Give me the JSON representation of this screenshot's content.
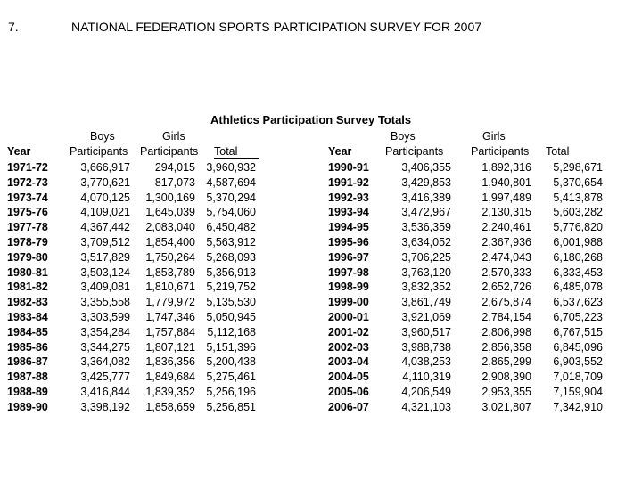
{
  "header": {
    "number": "7.",
    "title": "NATIONAL FEDERATION SPORTS PARTICIPATION SURVEY FOR 2007"
  },
  "subtitle": "Athletics Participation Survey Totals",
  "column_headers": {
    "year": "Year",
    "boys_top": "Boys",
    "girls_top": "Girls",
    "participants": "Participants",
    "total": "Total"
  },
  "left_table": {
    "years": [
      "1971-72",
      "1972-73",
      "1973-74",
      "1975-76",
      "1977-78",
      "1978-79",
      "1979-80",
      "1980-81",
      "1981-82",
      "1982-83",
      "1983-84",
      "1984-85",
      "1985-86",
      "1986-87",
      "1987-88",
      "1988-89",
      "1989-90"
    ],
    "boys": [
      "3,666,917",
      "3,770,621",
      "4,070,125",
      "4,109,021",
      "4,367,442",
      "3,709,512",
      "3,517,829",
      "3,503,124",
      "3,409,081",
      "3,355,558",
      "3,303,599",
      "3,354,284",
      "3,344,275",
      "3,364,082",
      "3,425,777",
      "3,416,844",
      "3,398,192"
    ],
    "girls": [
      "294,015",
      "817,073",
      "1,300,169",
      "1,645,039",
      "2,083,040",
      "1,854,400",
      "1,750,264",
      "1,853,789",
      "1,810,671",
      "1,779,972",
      "1,747,346",
      "1,757,884",
      "1,807,121",
      "1,836,356",
      "1,849,684",
      "1,839,352",
      "1,858,659"
    ],
    "totals": [
      "3,960,932",
      "4,587,694",
      "5,370,294",
      "5,754,060",
      "6,450,482",
      "5,563,912",
      "5,268,093",
      "5,356,913",
      "5,219,752",
      "5,135,530",
      "5,050,945",
      "5,112,168",
      "5,151,396",
      "5,200,438",
      "5,275,461",
      "5,256,196",
      "5,256,851"
    ]
  },
  "right_table": {
    "years": [
      "1990-91",
      "1991-92",
      "1992-93",
      "1993-94",
      "1994-95",
      "1995-96",
      "1996-97",
      "1997-98",
      "1998-99",
      "1999-00",
      "2000-01",
      "2001-02",
      "2002-03",
      "2003-04",
      "2004-05",
      "2005-06",
      "2006-07"
    ],
    "boys": [
      "3,406,355",
      "3,429,853",
      "3,416,389",
      "3,472,967",
      "3,536,359",
      "3,634,052",
      "3,706,225",
      "3,763,120",
      "3,832,352",
      "3,861,749",
      "3,921,069",
      "3,960,517",
      "3,988,738",
      "4,038,253",
      "4,110,319",
      "4,206,549",
      "4,321,103"
    ],
    "girls": [
      "1,892,316",
      "1,940,801",
      "1,997,489",
      "2,130,315",
      "2,240,461",
      "2,367,936",
      "2,474,043",
      "2,570,333",
      "2,652,726",
      "2,675,874",
      "2,784,154",
      "2,806,998",
      "2,856,358",
      "2,865,299",
      "2,908,390",
      "2,953,355",
      "3,021,807"
    ],
    "totals": [
      "5,298,671",
      "5,370,654",
      "5,413,878",
      "5,603,282",
      "5,776,820",
      "6,001,988",
      "6,180,268",
      "6,333,453",
      "6,485,078",
      "6,537,623",
      "6,705,223",
      "6,767,515",
      "6,845,096",
      "6,903,552",
      "7,018,709",
      "7,159,904",
      "7,342,910"
    ]
  }
}
